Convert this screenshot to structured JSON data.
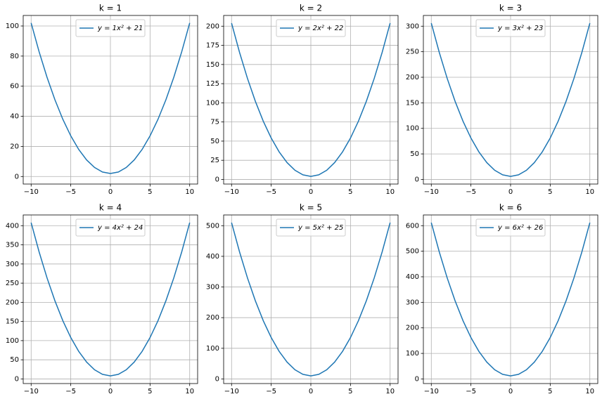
{
  "chart_data": [
    {
      "type": "line",
      "title": "k = 1",
      "x": [
        -10,
        -9,
        -8,
        -7,
        -6,
        -5,
        -4,
        -3,
        -2,
        -1,
        0,
        1,
        2,
        3,
        4,
        5,
        6,
        7,
        8,
        9,
        10
      ],
      "series": [
        {
          "name": "y = 1x² + 21",
          "color": "#1f77b4",
          "values": [
            102,
            83,
            66,
            51,
            38,
            27,
            18,
            11,
            6,
            3,
            2,
            3,
            6,
            11,
            18,
            27,
            38,
            51,
            66,
            83,
            102
          ]
        }
      ],
      "xlim": [
        -11,
        11
      ],
      "xticks": [
        {
          "value": -10,
          "label": "−10"
        },
        {
          "value": -5,
          "label": "−5"
        },
        0,
        5,
        10
      ],
      "ylim": [
        -5,
        107
      ],
      "yticks": [
        0,
        20,
        40,
        60,
        80,
        100
      ],
      "grid": true,
      "legend": "upper center"
    },
    {
      "type": "line",
      "title": "k = 2",
      "x": [
        -10,
        -9,
        -8,
        -7,
        -6,
        -5,
        -4,
        -3,
        -2,
        -1,
        0,
        1,
        2,
        3,
        4,
        5,
        6,
        7,
        8,
        9,
        10
      ],
      "series": [
        {
          "name": "y = 2x² + 22",
          "color": "#1f77b4",
          "values": [
            204,
            166,
            132,
            102,
            76,
            54,
            36,
            22,
            12,
            6,
            4,
            6,
            12,
            22,
            36,
            54,
            76,
            102,
            132,
            166,
            204
          ]
        }
      ],
      "xlim": [
        -11,
        11
      ],
      "xticks": [
        {
          "value": -10,
          "label": "−10"
        },
        {
          "value": -5,
          "label": "−5"
        },
        0,
        5,
        10
      ],
      "ylim": [
        -6,
        214
      ],
      "yticks": [
        0,
        25,
        50,
        75,
        100,
        125,
        150,
        175,
        200
      ],
      "grid": true,
      "legend": "upper center"
    },
    {
      "type": "line",
      "title": "k = 3",
      "x": [
        -10,
        -9,
        -8,
        -7,
        -6,
        -5,
        -4,
        -3,
        -2,
        -1,
        0,
        1,
        2,
        3,
        4,
        5,
        6,
        7,
        8,
        9,
        10
      ],
      "series": [
        {
          "name": "y = 3x² + 23",
          "color": "#1f77b4",
          "values": [
            306,
            249,
            198,
            153,
            114,
            81,
            54,
            33,
            18,
            9,
            6,
            9,
            18,
            33,
            54,
            81,
            114,
            153,
            198,
            249,
            306
          ]
        }
      ],
      "xlim": [
        -11,
        11
      ],
      "xticks": [
        {
          "value": -10,
          "label": "−10"
        },
        {
          "value": -5,
          "label": "−5"
        },
        0,
        5,
        10
      ],
      "ylim": [
        -9,
        321
      ],
      "yticks": [
        0,
        50,
        100,
        150,
        200,
        250,
        300
      ],
      "grid": true,
      "legend": "upper center"
    },
    {
      "type": "line",
      "title": "k = 4",
      "x": [
        -10,
        -9,
        -8,
        -7,
        -6,
        -5,
        -4,
        -3,
        -2,
        -1,
        0,
        1,
        2,
        3,
        4,
        5,
        6,
        7,
        8,
        9,
        10
      ],
      "series": [
        {
          "name": "y = 4x² + 24",
          "color": "#1f77b4",
          "values": [
            408,
            332,
            264,
            204,
            152,
            108,
            72,
            44,
            24,
            12,
            8,
            12,
            24,
            44,
            72,
            108,
            152,
            204,
            264,
            332,
            408
          ]
        }
      ],
      "xlim": [
        -11,
        11
      ],
      "xticks": [
        {
          "value": -10,
          "label": "−10"
        },
        {
          "value": -5,
          "label": "−5"
        },
        0,
        5,
        10
      ],
      "ylim": [
        -12,
        428
      ],
      "yticks": [
        0,
        50,
        100,
        150,
        200,
        250,
        300,
        350,
        400
      ],
      "grid": true,
      "legend": "upper center"
    },
    {
      "type": "line",
      "title": "k = 5",
      "x": [
        -10,
        -9,
        -8,
        -7,
        -6,
        -5,
        -4,
        -3,
        -2,
        -1,
        0,
        1,
        2,
        3,
        4,
        5,
        6,
        7,
        8,
        9,
        10
      ],
      "series": [
        {
          "name": "y = 5x² + 25",
          "color": "#1f77b4",
          "values": [
            510,
            415,
            330,
            255,
            190,
            135,
            90,
            55,
            30,
            15,
            10,
            15,
            30,
            55,
            90,
            135,
            190,
            255,
            330,
            415,
            510
          ]
        }
      ],
      "xlim": [
        -11,
        11
      ],
      "xticks": [
        {
          "value": -10,
          "label": "−10"
        },
        {
          "value": -5,
          "label": "−5"
        },
        0,
        5,
        10
      ],
      "ylim": [
        -15,
        535
      ],
      "yticks": [
        0,
        100,
        200,
        300,
        400,
        500
      ],
      "grid": true,
      "legend": "upper center"
    },
    {
      "type": "line",
      "title": "k = 6",
      "x": [
        -10,
        -9,
        -8,
        -7,
        -6,
        -5,
        -4,
        -3,
        -2,
        -1,
        0,
        1,
        2,
        3,
        4,
        5,
        6,
        7,
        8,
        9,
        10
      ],
      "series": [
        {
          "name": "y = 6x² + 26",
          "color": "#1f77b4",
          "values": [
            612,
            498,
            396,
            306,
            228,
            162,
            108,
            66,
            36,
            18,
            12,
            18,
            36,
            66,
            108,
            162,
            228,
            306,
            396,
            498,
            612
          ]
        }
      ],
      "xlim": [
        -11,
        11
      ],
      "xticks": [
        {
          "value": -10,
          "label": "−10"
        },
        {
          "value": -5,
          "label": "−5"
        },
        0,
        5,
        10
      ],
      "ylim": [
        -18,
        642
      ],
      "yticks": [
        0,
        100,
        200,
        300,
        400,
        500,
        600
      ],
      "grid": true,
      "legend": "upper center"
    }
  ]
}
